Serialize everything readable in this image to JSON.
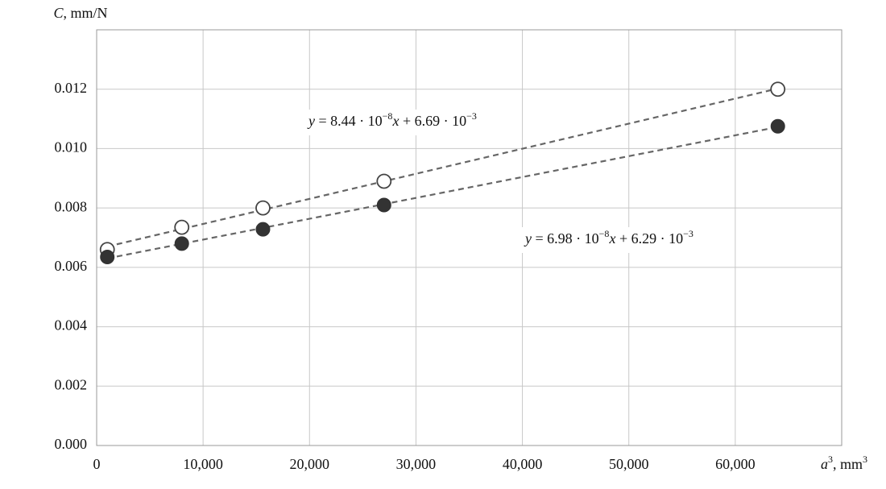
{
  "chart_data": {
    "type": "scatter",
    "y_label": [
      {
        "text": "C",
        "italic": true
      },
      {
        "text": ", mm/N"
      }
    ],
    "x_label": [
      {
        "text": "a",
        "italic": true
      },
      {
        "text": "3",
        "sup": true
      },
      {
        "text": ", mm"
      },
      {
        "text": "3",
        "sup": true
      }
    ],
    "series": [
      {
        "marker": "open-circle",
        "color": "#444444",
        "x": [
          1000,
          8000,
          15625,
          27000,
          64000
        ],
        "values": [
          0.0066,
          0.00735,
          0.008,
          0.0089,
          0.012
        ]
      },
      {
        "marker": "filled-circle",
        "color": "#333333",
        "x": [
          1000,
          8000,
          15625,
          27000,
          64000
        ],
        "values": [
          0.00635,
          0.0068,
          0.00728,
          0.0081,
          0.01075
        ]
      }
    ],
    "trendline": {
      "style": "dashed",
      "color": "#666666"
    },
    "annotations": [
      {
        "segments": [
          {
            "text": "y",
            "italic": true
          },
          {
            "text": " = 8.44 · 10"
          },
          {
            "text": "−8",
            "sup": true
          },
          {
            "text": "x",
            "italic": true
          },
          {
            "text": " + 6.69 · 10"
          },
          {
            "text": "−3",
            "sup": true
          }
        ]
      },
      {
        "segments": [
          {
            "text": "y",
            "italic": true
          },
          {
            "text": " = 6.98 · 10"
          },
          {
            "text": "−8",
            "sup": true
          },
          {
            "text": "x",
            "italic": true
          },
          {
            "text": " + 6.29 · 10"
          },
          {
            "text": "−3",
            "sup": true
          }
        ]
      }
    ],
    "xlim": [
      0,
      70000
    ],
    "xticks": [
      0,
      {
        "value": 10000,
        "label": "10,000"
      },
      {
        "value": 20000,
        "label": "20,000"
      },
      {
        "value": 30000,
        "label": "30,000"
      },
      {
        "value": 40000,
        "label": "40,000"
      },
      {
        "value": 50000,
        "label": "50,000"
      },
      {
        "value": 60000,
        "label": "60,000"
      }
    ],
    "ylim": [
      0,
      0.014
    ],
    "yticks": [
      {
        "value": 0,
        "label": "0.000"
      },
      {
        "value": 0.002,
        "label": "0.002"
      },
      {
        "value": 0.004,
        "label": "0.004"
      },
      {
        "value": 0.006,
        "label": "0.006"
      },
      {
        "value": 0.008,
        "label": "0.008"
      },
      {
        "value": 0.01,
        "label": "0.010"
      },
      {
        "value": 0.012,
        "label": "0.012"
      }
    ],
    "grid": true
  }
}
